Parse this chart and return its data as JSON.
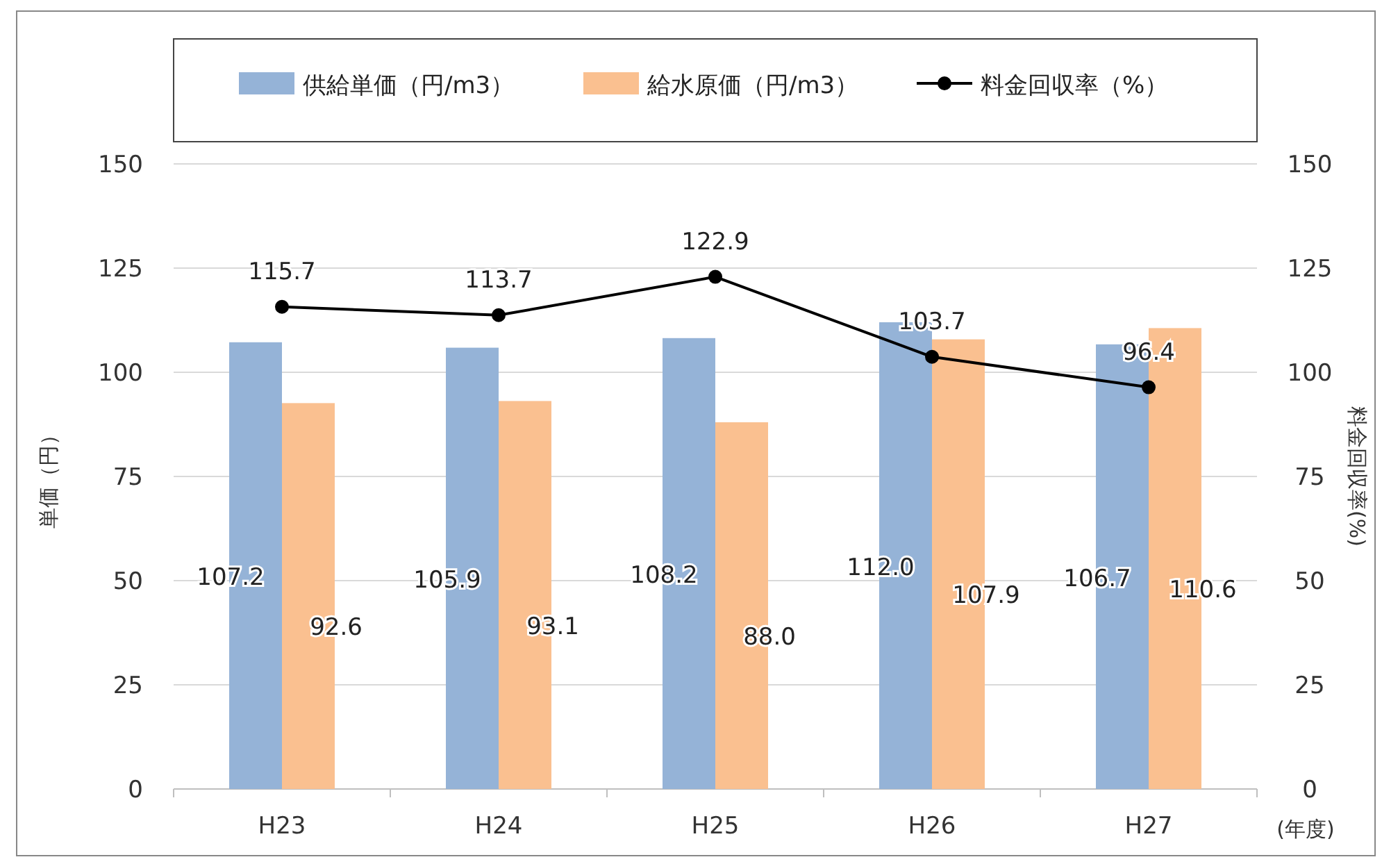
{
  "chart_data": {
    "type": "bar",
    "categories": [
      "H23",
      "H24",
      "H25",
      "H26",
      "H27"
    ],
    "series": [
      {
        "name": "供給単価（円/m3）",
        "color": "#95b3d7",
        "values": [
          107.2,
          105.9,
          108.2,
          112.0,
          106.7
        ],
        "value_labels": [
          "107.2",
          "105.9",
          "108.2",
          "112.0",
          "106.7"
        ]
      },
      {
        "name": "給水原価（円/m3）",
        "color": "#fac090",
        "values": [
          92.6,
          93.1,
          88.0,
          107.9,
          110.6
        ],
        "value_labels": [
          "92.6",
          "93.1",
          "88.0",
          "107.9",
          "110.6"
        ]
      },
      {
        "name": "料金回収率（%）",
        "type": "line",
        "axis": "y2",
        "color": "#000000",
        "marker": "circle",
        "values": [
          115.7,
          113.7,
          122.9,
          103.7,
          96.4
        ],
        "value_labels": [
          "115.7",
          "113.7",
          "122.9",
          "103.7",
          "96.4"
        ]
      }
    ],
    "ylabel": "単価（円）",
    "y2label": "料金回収率(%)",
    "xlabel": "(年度)",
    "ylim": [
      0,
      150
    ],
    "yticks": [
      0,
      25,
      50,
      75,
      100,
      125,
      150
    ],
    "y2lim": [
      0,
      150
    ],
    "y2ticks": [
      0,
      25,
      50,
      75,
      100,
      125,
      150
    ],
    "grid": "y",
    "legend": "top"
  }
}
